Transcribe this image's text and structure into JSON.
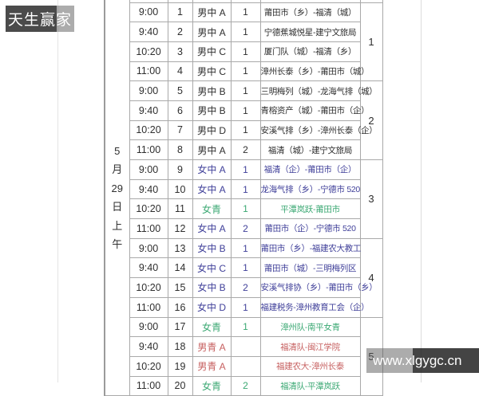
{
  "watermarks": {
    "top_left": "天生赢家",
    "bottom_right": "www.xlgygc.cn"
  },
  "date_label": {
    "text": "5月29日上午",
    "chars": [
      "5",
      "月",
      "29",
      "日",
      "上",
      "午"
    ]
  },
  "colors": {
    "black": "#2e2e2e",
    "purple": "#3f3f99",
    "green": "#3ba873",
    "red": "#c65f5f",
    "grid": "#a9a9a9"
  },
  "schedule": {
    "groups": [
      "1",
      "2",
      "3",
      "4",
      "5"
    ],
    "rows": [
      {
        "time": "9:00",
        "no": "1",
        "category": "男中 A",
        "round": "1",
        "matchup": "莆田市（乡）-福清（城）",
        "ink": "black"
      },
      {
        "time": "9:40",
        "no": "2",
        "category": "男中 A",
        "round": "1",
        "matchup": "宁德蕉城悦星-建宁文旅局",
        "ink": "black"
      },
      {
        "time": "10:20",
        "no": "3",
        "category": "男中 C",
        "round": "1",
        "matchup": "厦门队（城）-福清（乡）",
        "ink": "black"
      },
      {
        "time": "11:00",
        "no": "4",
        "category": "男中 C",
        "round": "1",
        "matchup": "漳州长泰（乡）-莆田市（城）",
        "ink": "black"
      },
      {
        "time": "9:00",
        "no": "5",
        "category": "男中 B",
        "round": "1",
        "matchup": "三明梅列（城）-龙海气排（城）",
        "ink": "black"
      },
      {
        "time": "9:40",
        "no": "6",
        "category": "男中 B",
        "round": "1",
        "matchup": "青榕资产（城）-莆田市（企）",
        "ink": "black"
      },
      {
        "time": "10:20",
        "no": "7",
        "category": "男中 D",
        "round": "1",
        "matchup": "安溪气排（乡）-漳州长泰（企）",
        "ink": "black"
      },
      {
        "time": "11:00",
        "no": "8",
        "category": "男中 A",
        "round": "2",
        "matchup": "福清（城）-建宁文旅局",
        "ink": "black"
      },
      {
        "time": "9:00",
        "no": "9",
        "category": "女中 A",
        "round": "1",
        "matchup": "福清（企）-莆田市（企）",
        "ink": "purple"
      },
      {
        "time": "9:40",
        "no": "10",
        "category": "女中 A",
        "round": "1",
        "matchup": "龙海气排（乡）-宁德市 520",
        "ink": "purple"
      },
      {
        "time": "10:20",
        "no": "11",
        "category": "女青",
        "round": "1",
        "matchup": "平潭岚跃-莆田市",
        "ink": "green"
      },
      {
        "time": "11:00",
        "no": "12",
        "category": "女中 A",
        "round": "2",
        "matchup": "莆田市（企）-宁德市 520",
        "ink": "purple"
      },
      {
        "time": "9:00",
        "no": "13",
        "category": "女中 B",
        "round": "1",
        "matchup": "莆田市（乡）-福建农大教工",
        "ink": "purple"
      },
      {
        "time": "9:40",
        "no": "14",
        "category": "女中 C",
        "round": "1",
        "matchup": "莆田市（城）-三明梅列区",
        "ink": "purple"
      },
      {
        "time": "10:20",
        "no": "15",
        "category": "女中 B",
        "round": "2",
        "matchup": "安溪气排协（乡）-莆田市（乡）",
        "ink": "purple"
      },
      {
        "time": "11:00",
        "no": "16",
        "category": "女中 D",
        "round": "1",
        "matchup": "福建税务-漳州教育工会（企）",
        "ink": "purple"
      },
      {
        "time": "9:00",
        "no": "17",
        "category": "女青",
        "round": "1",
        "matchup": "漳州队-南平女青",
        "ink": "green"
      },
      {
        "time": "9:40",
        "no": "18",
        "category": "男青 A",
        "round": "",
        "matchup": "福清队-闽江学院",
        "ink": "red"
      },
      {
        "time": "10:20",
        "no": "19",
        "category": "男青 A",
        "round": "",
        "matchup": "福建农大-漳州长泰",
        "ink": "red"
      },
      {
        "time": "11:00",
        "no": "20",
        "category": "女青",
        "round": "2",
        "matchup": "福清队-平潭岚跃",
        "ink": "green"
      }
    ]
  }
}
